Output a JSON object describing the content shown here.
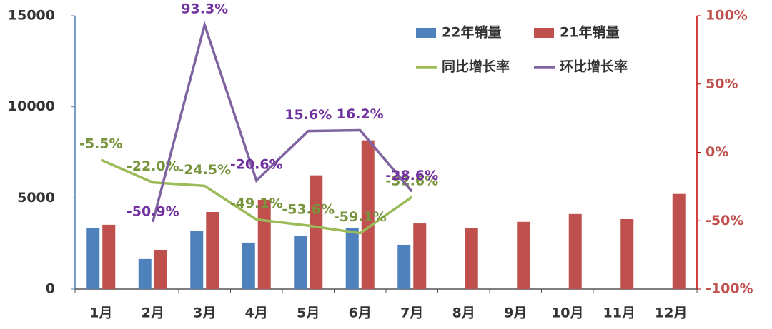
{
  "chart_data": {
    "type": "bar-line",
    "categories": [
      "1月",
      "2月",
      "3月",
      "4月",
      "5月",
      "6月",
      "7月",
      "8月",
      "9月",
      "10月",
      "11月",
      "12月"
    ],
    "ylim": [
      0,
      15000
    ],
    "yticks": [
      0,
      5000,
      10000,
      15000
    ],
    "y2lim": [
      -100,
      100
    ],
    "y2ticks": [
      {
        "value": -100,
        "label": "-100%"
      },
      {
        "value": -50,
        "label": "-50%"
      },
      {
        "value": 0,
        "label": "0%"
      },
      {
        "value": 50,
        "label": "50%"
      },
      {
        "value": 100,
        "label": "100%"
      }
    ],
    "legend": "top-right",
    "series": [
      {
        "name": "22年销量",
        "type": "bar",
        "color": "#4f81bd",
        "values": [
          3330,
          1650,
          3200,
          2550,
          2900,
          3370,
          2430,
          null,
          null,
          null,
          null,
          null
        ]
      },
      {
        "name": "21年销量",
        "type": "bar",
        "color": "#c0504d",
        "values": [
          3530,
          2120,
          4230,
          4900,
          6240,
          8160,
          3600,
          3330,
          3690,
          4120,
          3840,
          5220
        ]
      },
      {
        "name": "同比增长率",
        "type": "line",
        "axis": "y2",
        "color": "#9bbb59",
        "label_color": "#77933c",
        "values": [
          -5.5,
          -22.0,
          -24.5,
          -49.1,
          -53.6,
          -59.1,
          -32.6,
          null,
          null,
          null,
          null,
          null
        ],
        "value_labels": [
          "-5.5%",
          "-22.0%",
          "-24.5%",
          "-49.1%",
          "-53.6%",
          "-59.1%",
          "-32.6%",
          null,
          null,
          null,
          null,
          null
        ]
      },
      {
        "name": "环比增长率",
        "type": "line",
        "axis": "y2",
        "color": "#8064a2",
        "label_color": "#7030a0",
        "values": [
          null,
          -50.9,
          93.3,
          -20.6,
          15.6,
          16.2,
          -28.6,
          null,
          null,
          null,
          null,
          null
        ],
        "value_labels": [
          null,
          "-50.9%",
          "93.3%",
          "-20.6%",
          "15.6%",
          "16.2%",
          "-28.6%",
          null,
          null,
          null,
          null,
          null
        ]
      }
    ]
  }
}
